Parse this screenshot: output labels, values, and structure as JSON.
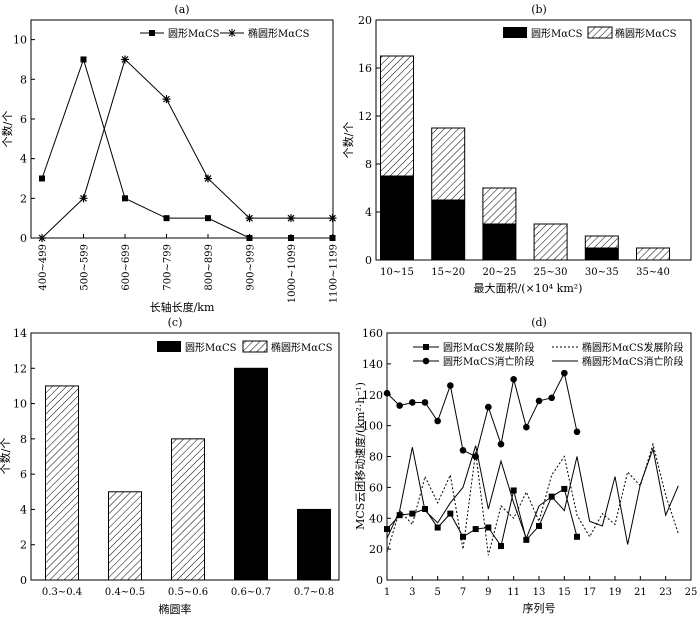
{
  "chart_data": [
    {
      "panel": "(a)",
      "type": "line",
      "categories": [
        "400~499",
        "500~599",
        "600~699",
        "700~799",
        "800~899",
        "900~999",
        "1000~1099",
        "1100~1199"
      ],
      "xlabel": "长轴长度/km",
      "ylabel": "个数/个",
      "ylim": [
        0,
        10
      ],
      "yticks": [
        0,
        2,
        4,
        6,
        8,
        10
      ],
      "series": [
        {
          "name": "圆形MαCS",
          "marker": "square",
          "values": [
            3,
            9,
            2,
            1,
            1,
            0,
            0,
            0
          ]
        },
        {
          "name": "椭圆形MαCS",
          "marker": "asterisk",
          "values": [
            0,
            2,
            9,
            7,
            3,
            1,
            1,
            1
          ]
        }
      ],
      "legend": "top-right",
      "grid": false
    },
    {
      "panel": "(b)",
      "type": "bar",
      "stacked": true,
      "categories": [
        "10~15",
        "15~20",
        "20~25",
        "25~30",
        "30~35",
        "35~40"
      ],
      "xlabel": "最大面积/(×10⁴ km²)",
      "ylabel": "个数/个",
      "ylim": [
        0,
        20
      ],
      "yticks": [
        0,
        4,
        8,
        12,
        16,
        20
      ],
      "series": [
        {
          "name": "圆形MαCS",
          "fill": "solid",
          "values": [
            7,
            5,
            3,
            0,
            1,
            0
          ]
        },
        {
          "name": "椭圆形MαCS",
          "fill": "hatch",
          "values": [
            10,
            6,
            3,
            3,
            1,
            1
          ]
        }
      ],
      "legend": "top-right",
      "grid": false
    },
    {
      "panel": "(c)",
      "type": "bar",
      "categories": [
        "0.3~0.4",
        "0.4~0.5",
        "0.5~0.6",
        "0.6~0.7",
        "0.7~0.8"
      ],
      "xlabel": "椭圆率",
      "ylabel": "个数/个",
      "ylim": [
        0,
        14
      ],
      "yticks": [
        0,
        2,
        4,
        6,
        8,
        10,
        12,
        14
      ],
      "series": [
        {
          "name": "圆形MαCS",
          "fill": "solid",
          "values": [
            0,
            0,
            0,
            12,
            4
          ]
        },
        {
          "name": "椭圆形MαCS",
          "fill": "hatch",
          "values": [
            11,
            5,
            8,
            0,
            0
          ]
        }
      ],
      "legend": "top-right",
      "grid": false
    },
    {
      "panel": "(d)",
      "type": "line",
      "xlabel": "序列号",
      "ylabel": "MCS云团移动速度/(km²·h⁻¹)",
      "xlim": [
        1,
        25
      ],
      "xticks": [
        1,
        3,
        5,
        7,
        9,
        11,
        13,
        15,
        17,
        19,
        21,
        23,
        25
      ],
      "ylim": [
        0,
        160
      ],
      "yticks": [
        0,
        20,
        40,
        60,
        80,
        100,
        120,
        140,
        160
      ],
      "series": [
        {
          "name": "圆形MαCS发展阶段",
          "style": "solid-square",
          "x": [
            1,
            2,
            3,
            4,
            5,
            6,
            7,
            8,
            9,
            10,
            11,
            12,
            13,
            14,
            15,
            16
          ],
          "y": [
            33,
            42,
            43,
            46,
            34,
            43,
            28,
            33,
            34,
            22,
            58,
            26,
            35,
            54,
            59,
            28
          ]
        },
        {
          "name": "圆形MαCS消亡阶段",
          "style": "solid-circle",
          "x": [
            1,
            2,
            3,
            4,
            5,
            6,
            7,
            8,
            9,
            10,
            11,
            12,
            13,
            14,
            15,
            16
          ],
          "y": [
            121,
            113,
            115,
            115,
            103,
            126,
            84,
            80,
            112,
            88,
            130,
            99,
            116,
            118,
            134,
            96
          ]
        },
        {
          "name": "椭圆形MαCS发展阶段",
          "style": "dotted",
          "x": [
            1,
            2,
            3,
            4,
            5,
            6,
            7,
            8,
            9,
            10,
            11,
            12,
            13,
            14,
            15,
            16,
            17,
            18,
            19,
            20,
            21,
            22,
            23,
            24
          ],
          "y": [
            18,
            45,
            36,
            67,
            50,
            68,
            20,
            83,
            16,
            48,
            40,
            57,
            38,
            68,
            80,
            42,
            28,
            43,
            36,
            70,
            61,
            88,
            55,
            30
          ]
        },
        {
          "name": "椭圆形MαCS消亡阶段",
          "style": "solid",
          "x": [
            1,
            2,
            3,
            4,
            5,
            6,
            7,
            8,
            9,
            10,
            11,
            12,
            13,
            14,
            15,
            16,
            17,
            18,
            19,
            20,
            21,
            22,
            23,
            24
          ],
          "y": [
            27,
            45,
            86,
            45,
            37,
            50,
            60,
            87,
            46,
            77,
            50,
            27,
            48,
            54,
            45,
            80,
            38,
            35,
            67,
            23,
            62,
            85,
            42,
            61
          ]
        }
      ],
      "legend": "top",
      "grid": false
    }
  ]
}
